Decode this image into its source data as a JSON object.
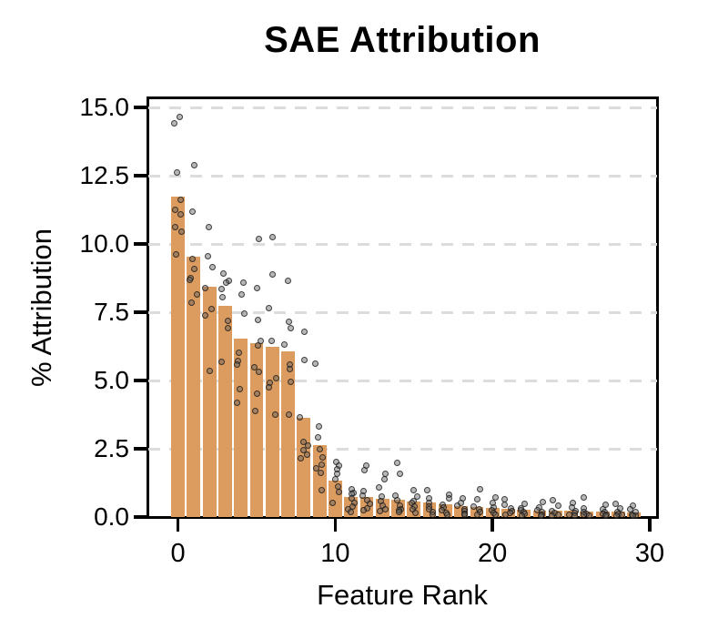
{
  "title": "SAE Attribution",
  "axes": {
    "x_label": "Feature Rank",
    "y_label": "% Attribution",
    "x_ticks": [
      {
        "label": "0",
        "value": 0
      },
      {
        "label": "10",
        "value": 10
      },
      {
        "label": "20",
        "value": 20
      },
      {
        "label": "30",
        "value": 30
      }
    ],
    "y_ticks": [
      {
        "label": "0.0",
        "value": 0
      },
      {
        "label": "2.5",
        "value": 2.5
      },
      {
        "label": "5.0",
        "value": 5
      },
      {
        "label": "7.5",
        "value": 7.5
      },
      {
        "label": "10.0",
        "value": 10
      },
      {
        "label": "12.5",
        "value": 12.5
      },
      {
        "label": "15.0",
        "value": 15
      }
    ],
    "grid_values": [
      2.5,
      5,
      7.5,
      10,
      12.5,
      15
    ]
  },
  "chart_data": {
    "type": "bar",
    "title": "SAE Attribution",
    "xlabel": "Feature Rank",
    "ylabel": "% Attribution",
    "ylim": [
      0,
      15
    ],
    "xlim": [
      -1.9,
      30.7
    ],
    "grid": "horizontal-dashed",
    "legend": "none",
    "bar_color": "#DD9C5F",
    "point_color": "rgba(30,30,30,0.6)",
    "categories": [
      0,
      1,
      2,
      3,
      4,
      5,
      6,
      7,
      8,
      9,
      10,
      11,
      12,
      13,
      14,
      15,
      16,
      17,
      18,
      19,
      20,
      21,
      22,
      23,
      24,
      25,
      26,
      27,
      28,
      29
    ],
    "bar_values": [
      11.75,
      9.52,
      8.45,
      7.75,
      6.55,
      6.38,
      6.22,
      6.07,
      3.64,
      2.63,
      1.32,
      0.75,
      0.72,
      0.66,
      0.63,
      0.58,
      0.52,
      0.46,
      0.41,
      0.37,
      0.34,
      0.31,
      0.28,
      0.25,
      0.23,
      0.22,
      0.21,
      0.2,
      0.19,
      0.18
    ],
    "scatter_points": [
      [
        14.65,
        14.43,
        12.63,
        11.63,
        11.25,
        11.1,
        10.63,
        10.46,
        9.63
      ],
      [
        12.9,
        11.2,
        9.45,
        9.08,
        8.75,
        8.7,
        8.14,
        7.86
      ],
      [
        10.63,
        9.56,
        9.14,
        8.4,
        7.61,
        7.37,
        5.35
      ],
      [
        8.91,
        8.64,
        8.58,
        8.35,
        8.05,
        7.19,
        6.91,
        5.7
      ],
      [
        8.57,
        8.16,
        7.45,
        6.03,
        5.73,
        5.57,
        4.7,
        4.2
      ],
      [
        10.19,
        8.38,
        7.21,
        6.44,
        6.28,
        5.48,
        5.31,
        4.53,
        3.87
      ],
      [
        10.24,
        8.89,
        7.64,
        6.44,
        5.07,
        4.92,
        4.75,
        3.74
      ],
      [
        8.65,
        7.14,
        6.92,
        6.33,
        5.58,
        5.42,
        4.96,
        3.76
      ],
      [
        6.78,
        5.74,
        3.64,
        2.76,
        2.61,
        2.46,
        2.3,
        2.15
      ],
      [
        5.61,
        3.31,
        2.92,
        2.48,
        2.2,
        1.92,
        1.78,
        1.63,
        0.99
      ],
      [
        2.02,
        1.9,
        1.74,
        1.57,
        1.38,
        1.13,
        0.91,
        0.52
      ],
      [
        1.02,
        0.88,
        0.85,
        0.69,
        0.52,
        0.39,
        0.28,
        0.2
      ],
      [
        1.87,
        1.71,
        0.96,
        0.8,
        0.63,
        0.47,
        0.32,
        0.25
      ],
      [
        1.57,
        1.38,
        1.07,
        0.74,
        0.58,
        0.43,
        0.28,
        0.22
      ],
      [
        1.98,
        1.57,
        0.8,
        0.63,
        0.43,
        0.28,
        0.25,
        0.2
      ],
      [
        0.98,
        0.75,
        0.59,
        0.53,
        0.38,
        0.3,
        0.15
      ],
      [
        0.98,
        0.7,
        0.52,
        0.4,
        0.28,
        0.18,
        0.1
      ],
      [
        0.83,
        0.7,
        0.46,
        0.36,
        0.25,
        0.15,
        0.1
      ],
      [
        0.68,
        0.52,
        0.41,
        0.3,
        0.22,
        0.12,
        0.08
      ],
      [
        1.03,
        0.64,
        0.37,
        0.28,
        0.18,
        0.1
      ],
      [
        0.72,
        0.53,
        0.34,
        0.25,
        0.16,
        0.08
      ],
      [
        0.64,
        0.46,
        0.31,
        0.22,
        0.14,
        0.07
      ],
      [
        0.47,
        0.33,
        0.25,
        0.18,
        0.12,
        0.06
      ],
      [
        0.55,
        0.36,
        0.25,
        0.17,
        0.1,
        0.06
      ],
      [
        0.61,
        0.42,
        0.22,
        0.15,
        0.09,
        0.05
      ],
      [
        0.53,
        0.36,
        0.21,
        0.14,
        0.09,
        0.05
      ],
      [
        0.72,
        0.33,
        0.2,
        0.13,
        0.08,
        0.05
      ],
      [
        0.44,
        0.28,
        0.19,
        0.12,
        0.07,
        0.05
      ],
      [
        0.5,
        0.31,
        0.18,
        0.11,
        0.07,
        0.04
      ],
      [
        0.42,
        0.28,
        0.17,
        0.1,
        0.06,
        0.04
      ]
    ]
  }
}
